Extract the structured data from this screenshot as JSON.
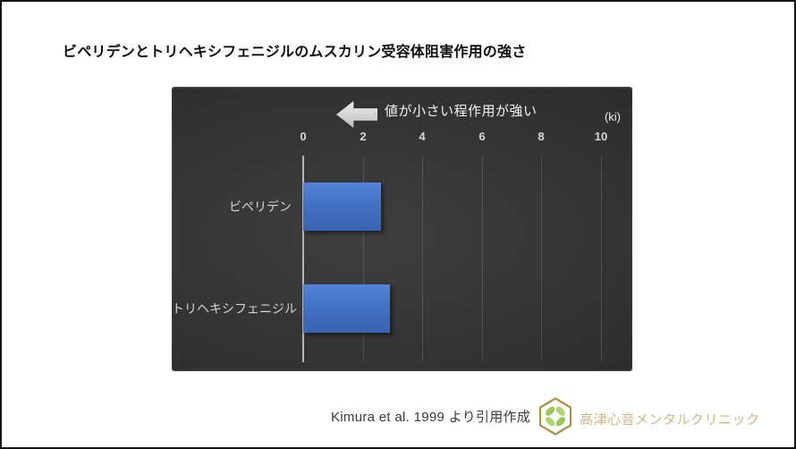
{
  "title": "ビペリデンとトリヘキシフェニジルのムスカリン受容体阻害作用の強さ",
  "chart_data": {
    "type": "bar",
    "orientation": "horizontal",
    "title": "ビペリデンとトリヘキシフェニジルのムスカリン受容体阻害作用の強さ",
    "categories": [
      "ビペリデン",
      "トリヘキシフェニジル"
    ],
    "values": [
      2.6,
      2.9
    ],
    "x_ticks": [
      "0",
      "2",
      "4",
      "6",
      "8",
      "10"
    ],
    "xlim": [
      0,
      10
    ],
    "unit_label": "(ki)",
    "annotation": "値が小さい程作用が強い",
    "legend": "none",
    "grid": "vertical-gridlines",
    "bar_color": "#4472c4",
    "plot_background_dark": "#333333",
    "xlabel": "",
    "ylabel": ""
  },
  "footer": {
    "source_note": "Kimura et al. 1999 より引用作成",
    "clinic_name": "高津心音メンタルクリニック"
  },
  "colors": {
    "bar_blue": "#4472c4",
    "axis_line": "#b5b5b5",
    "tick_text": "#d9d9d9",
    "annotation_text": "#f5f5f5",
    "logo_gold": "#ab9245",
    "logo_green": "#8dc341",
    "clinic_text_gold": "#c9b987"
  }
}
